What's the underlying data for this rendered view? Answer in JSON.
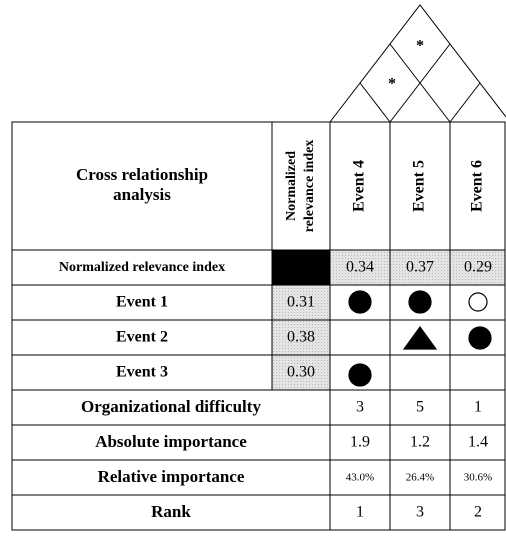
{
  "roof": [
    "*",
    "*"
  ],
  "header": {
    "title": [
      "Cross relationship",
      "analysis"
    ],
    "index_column": [
      "Normalized",
      "relevance index"
    ],
    "events": [
      "Event 4",
      "Event 5",
      "Event 6"
    ]
  },
  "index_row": {
    "label": "Normalized relevance index",
    "values": [
      "0.34",
      "0.37",
      "0.29"
    ]
  },
  "rows": [
    {
      "label": "Event 1",
      "index": "0.31"
    },
    {
      "label": "Event 2",
      "index": "0.38"
    },
    {
      "label": "Event 3",
      "index": "0.30"
    }
  ],
  "summary": [
    {
      "label": "Organizational difficulty",
      "values": [
        "3",
        "5",
        "1"
      ]
    },
    {
      "label": "Absolute importance",
      "values": [
        "1.9",
        "1.2",
        "1.4"
      ]
    },
    {
      "label": "Relative importance",
      "values": [
        "43.0%",
        "26.4%",
        "30.6%"
      ]
    },
    {
      "label": "Rank",
      "values": [
        "1",
        "3",
        "2"
      ]
    }
  ]
}
